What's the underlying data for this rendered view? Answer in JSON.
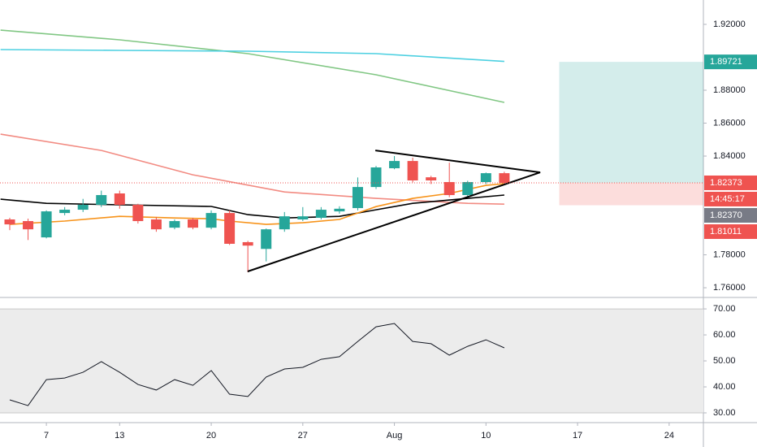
{
  "chart_data": [
    {
      "type": "candlestick",
      "open": [
        1.8015,
        1.8005,
        1.7906,
        1.8054,
        1.8074,
        1.8104,
        1.8173,
        1.8104,
        1.8015,
        1.7965,
        1.8015,
        1.7965,
        1.8054,
        1.7877,
        1.7836,
        1.7955,
        1.8015,
        1.8025,
        1.8064,
        1.8084,
        1.8212,
        1.8326,
        1.837,
        1.8271,
        1.8242,
        1.8163,
        1.8242,
        1.8296
      ],
      "high": [
        1.8025,
        1.802,
        1.807,
        1.809,
        1.814,
        1.819,
        1.819,
        1.811,
        1.803,
        1.8015,
        1.8025,
        1.807,
        1.807,
        1.7885,
        1.796,
        1.806,
        1.809,
        1.809,
        1.8095,
        1.827,
        1.834,
        1.84,
        1.839,
        1.828,
        1.836,
        1.825,
        1.83,
        1.8305
      ],
      "low": [
        1.795,
        1.789,
        1.79,
        1.804,
        1.806,
        1.809,
        1.808,
        1.799,
        1.794,
        1.7955,
        1.7955,
        1.7955,
        1.786,
        1.7694,
        1.776,
        1.794,
        1.8005,
        1.8015,
        1.805,
        1.807,
        1.82,
        1.832,
        1.824,
        1.823,
        1.815,
        1.815,
        1.823,
        1.8225
      ],
      "close": [
        1.7985,
        1.7955,
        1.8064,
        1.8074,
        1.8104,
        1.8163,
        1.8104,
        1.8005,
        1.7955,
        1.8005,
        1.7965,
        1.8054,
        1.7867,
        1.7856,
        1.7955,
        1.8034,
        1.8034,
        1.8074,
        1.808,
        1.8212,
        1.8331,
        1.837,
        1.8252,
        1.8252,
        1.8163,
        1.8242,
        1.8296,
        1.8237
      ],
      "up_color": "#26a69a",
      "down_color": "#ef5350",
      "xlim": [
        -0.532,
        37.87
      ],
      "ylim": [
        1.7546,
        1.9348
      ],
      "yticks": [
        {
          "value": 1.92,
          "label": "1.92000"
        },
        {
          "value": 1.88,
          "label": "1.88000"
        },
        {
          "value": 1.86,
          "label": "1.86000"
        },
        {
          "value": 1.84,
          "label": "1.84000"
        },
        {
          "value": 1.78,
          "label": "1.78000"
        },
        {
          "value": 1.76,
          "label": "1.76000"
        }
      ],
      "lines": [
        {
          "color": "#81c784",
          "x": [
            -0.5,
            6,
            13,
            20,
            27
          ],
          "values": [
            1.9165,
            1.9106,
            1.9022,
            1.8894,
            1.8726
          ]
        },
        {
          "color": "#4dd0e1",
          "x": [
            -0.5,
            6,
            13,
            20,
            27
          ],
          "values": [
            1.9047,
            1.9042,
            1.9037,
            1.9022,
            1.8975
          ]
        },
        {
          "color": "#f28b82",
          "x": [
            -0.5,
            5,
            10,
            15,
            20,
            25,
            27
          ],
          "values": [
            1.8533,
            1.8434,
            1.8286,
            1.8182,
            1.8143,
            1.8113,
            1.8108
          ]
        },
        {
          "color": "#000000",
          "x": [
            -0.5,
            2,
            6,
            11,
            13,
            15,
            18,
            20,
            22,
            25,
            27
          ],
          "values": [
            1.8138,
            1.8113,
            1.8104,
            1.8094,
            1.8044,
            1.8024,
            1.8034,
            1.8074,
            1.8113,
            1.8143,
            1.8163
          ]
        },
        {
          "color": "#f7931a",
          "x": [
            0,
            3,
            6,
            9,
            11,
            12,
            14,
            16,
            18,
            20,
            22,
            24,
            26,
            27
          ],
          "values": [
            1.7985,
            1.8005,
            1.8034,
            1.8024,
            1.8019,
            1.8005,
            1.7985,
            1.7995,
            1.8015,
            1.8093,
            1.8143,
            1.8173,
            1.8222,
            1.8232
          ]
        }
      ],
      "drawings": [
        {
          "color": "#000000",
          "x": [
            12.99,
            28.96
          ],
          "values": [
            1.7699,
            1.8301
          ]
        },
        {
          "color": "#000000",
          "x": [
            19.96,
            28.96
          ],
          "values": [
            1.8434,
            1.8301
          ]
        }
      ],
      "position": {
        "start": 30,
        "entry": 1.82373,
        "target": 1.89721,
        "stop": 1.81011,
        "profit_color": "#26a69a",
        "loss_color": "#ef5350"
      },
      "price_labels": [
        {
          "value": 1.89721,
          "label": "1.89721",
          "color": "#26a69a"
        },
        {
          "value": 1.82373,
          "label": "1.82373",
          "color": "#ef5350"
        },
        {
          "value": 1.8237,
          "label": "1.82370",
          "color": "#787b86"
        },
        {
          "value": 1.81011,
          "label": "1.81011",
          "color": "#ef5350"
        }
      ],
      "countdown": "14:45:17"
    },
    {
      "type": "line",
      "values": [
        35.0,
        32.8,
        42.8,
        43.4,
        45.6,
        49.7,
        45.6,
        40.9,
        38.8,
        42.8,
        40.6,
        46.3,
        37.2,
        36.3,
        43.8,
        46.9,
        47.5,
        50.6,
        51.6,
        57.5,
        63.1,
        64.4,
        57.5,
        56.6,
        52.2,
        55.6,
        58.1,
        55.0
      ],
      "color": "#131722",
      "band": [
        30,
        70
      ],
      "xlim": [
        -0.532,
        37.87
      ],
      "ylim": [
        26.25,
        74.4
      ],
      "yticks": [
        {
          "value": 70,
          "label": "70.00"
        },
        {
          "value": 60,
          "label": "60.00"
        },
        {
          "value": 50,
          "label": "50.00"
        },
        {
          "value": 40,
          "label": "40.00"
        },
        {
          "value": 30,
          "label": "30.00"
        }
      ],
      "xticks": [
        {
          "value": 2,
          "label": "7"
        },
        {
          "value": 6,
          "label": "13"
        },
        {
          "value": 11,
          "label": "20"
        },
        {
          "value": 16,
          "label": "27"
        },
        {
          "value": 21,
          "label": "Aug"
        },
        {
          "value": 26,
          "label": "10"
        },
        {
          "value": 31,
          "label": "17"
        },
        {
          "value": 36,
          "label": "24"
        }
      ]
    }
  ]
}
